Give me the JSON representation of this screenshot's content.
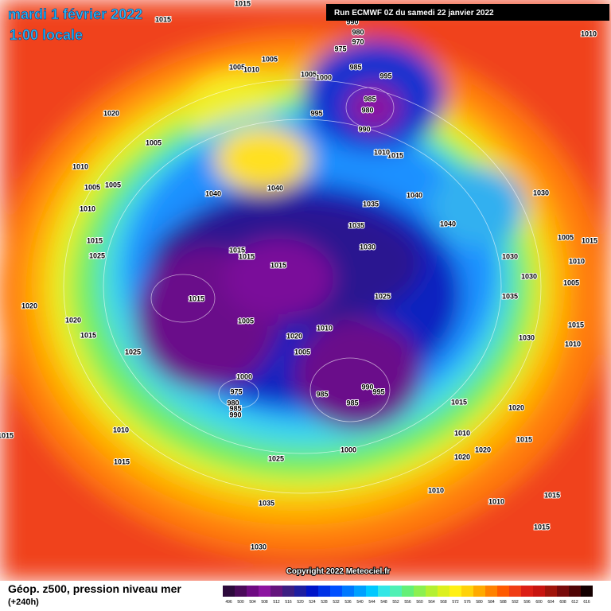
{
  "header": {
    "date": "mardi 1 février 2022",
    "time": "1:00 locale",
    "run": "Run ECMWF 0Z du samedi 22 janvier 2022"
  },
  "footer": {
    "copyright": "Copyright 2022 Meteociel.fr",
    "legend_title": "Géop. z500, pression niveau mer",
    "forecast_hour": "(+240h)"
  },
  "isobar_labels": [
    1015,
    1015,
    1010,
    990,
    980,
    970,
    975,
    985,
    995,
    1005,
    1005,
    1010,
    1005,
    1000,
    985,
    980,
    990,
    995,
    1020,
    1005,
    1015,
    1010,
    1010,
    1005,
    1005,
    1040,
    1040,
    1040,
    1030,
    1035,
    1035,
    1040,
    1010,
    1015,
    1025,
    1015,
    1015,
    1015,
    1030,
    1005,
    1015,
    1030,
    1010,
    1030,
    1005,
    1020,
    1015,
    1025,
    1035,
    1005,
    1020,
    1010,
    1015,
    1015,
    1020,
    1005,
    1025,
    1030,
    1010,
    1000,
    990,
    995,
    975,
    985,
    980,
    985,
    985,
    990,
    1015,
    1020,
    1015,
    1010,
    1010,
    1015,
    1020,
    1020,
    1000,
    1025,
    1015,
    1010,
    1010,
    1015,
    1035,
    1015,
    1030
  ],
  "legend": {
    "values": [
      496,
      500,
      504,
      508,
      512,
      516,
      520,
      524,
      528,
      532,
      536,
      540,
      544,
      548,
      552,
      556,
      560,
      564,
      568,
      572,
      576,
      580,
      584,
      588,
      592,
      596,
      600,
      604,
      608,
      612,
      616
    ],
    "colors": [
      "#2d0a3c",
      "#4b0a5a",
      "#6e0a82",
      "#8c14a0",
      "#64147d",
      "#3c1e82",
      "#1e1ea0",
      "#0014c8",
      "#0032e6",
      "#0050ff",
      "#0078ff",
      "#00a0ff",
      "#00c8ff",
      "#32e6e6",
      "#50f0b4",
      "#64f078",
      "#8cf050",
      "#b4f032",
      "#dcf01e",
      "#fff014",
      "#ffd20a",
      "#ffaa00",
      "#ff8200",
      "#ff5a00",
      "#f03c14",
      "#dc1e14",
      "#c8140f",
      "#a0140a",
      "#780a0a",
      "#500505",
      "#140000"
    ]
  }
}
